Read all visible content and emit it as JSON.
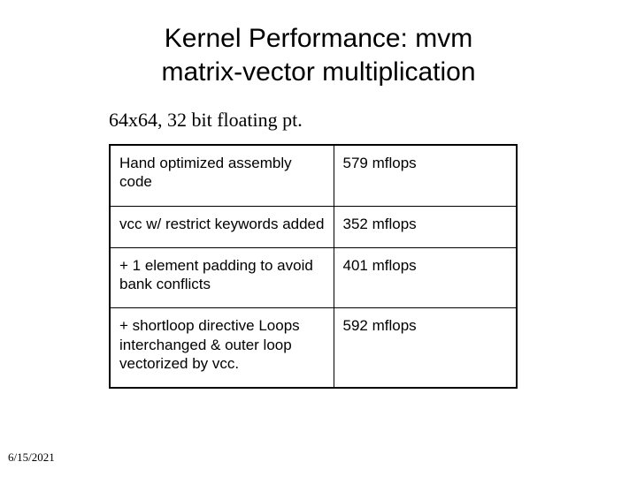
{
  "title_line1": "Kernel Performance: mvm",
  "title_line2": "matrix-vector multiplication",
  "subtitle": "64x64, 32 bit floating pt.",
  "table": {
    "rows": [
      {
        "label": "Hand optimized assembly code",
        "value": "579 mflops"
      },
      {
        "label": "vcc w/ restrict keywords added",
        "value": "352 mflops"
      },
      {
        "label": "+ 1 element padding to avoid bank conflicts",
        "value": "401 mflops"
      },
      {
        "label": "+   shortloop directive Loops interchanged & outer loop vectorized by vcc.",
        "value": "592 mflops"
      }
    ],
    "border_color": "#000000",
    "font_size_pt": 13,
    "col_left_width_pct": 55,
    "col_right_width_pct": 45
  },
  "footer_date": "6/15/2021",
  "colors": {
    "background": "#ffffff",
    "text": "#000000"
  },
  "typography": {
    "title_font": "Arial",
    "title_size_pt": 23,
    "subtitle_font": "Times New Roman",
    "subtitle_size_pt": 16,
    "table_font": "Arial",
    "footer_font": "Times New Roman",
    "footer_size_pt": 10
  },
  "layout": {
    "slide_width": 720,
    "slide_height": 540
  }
}
